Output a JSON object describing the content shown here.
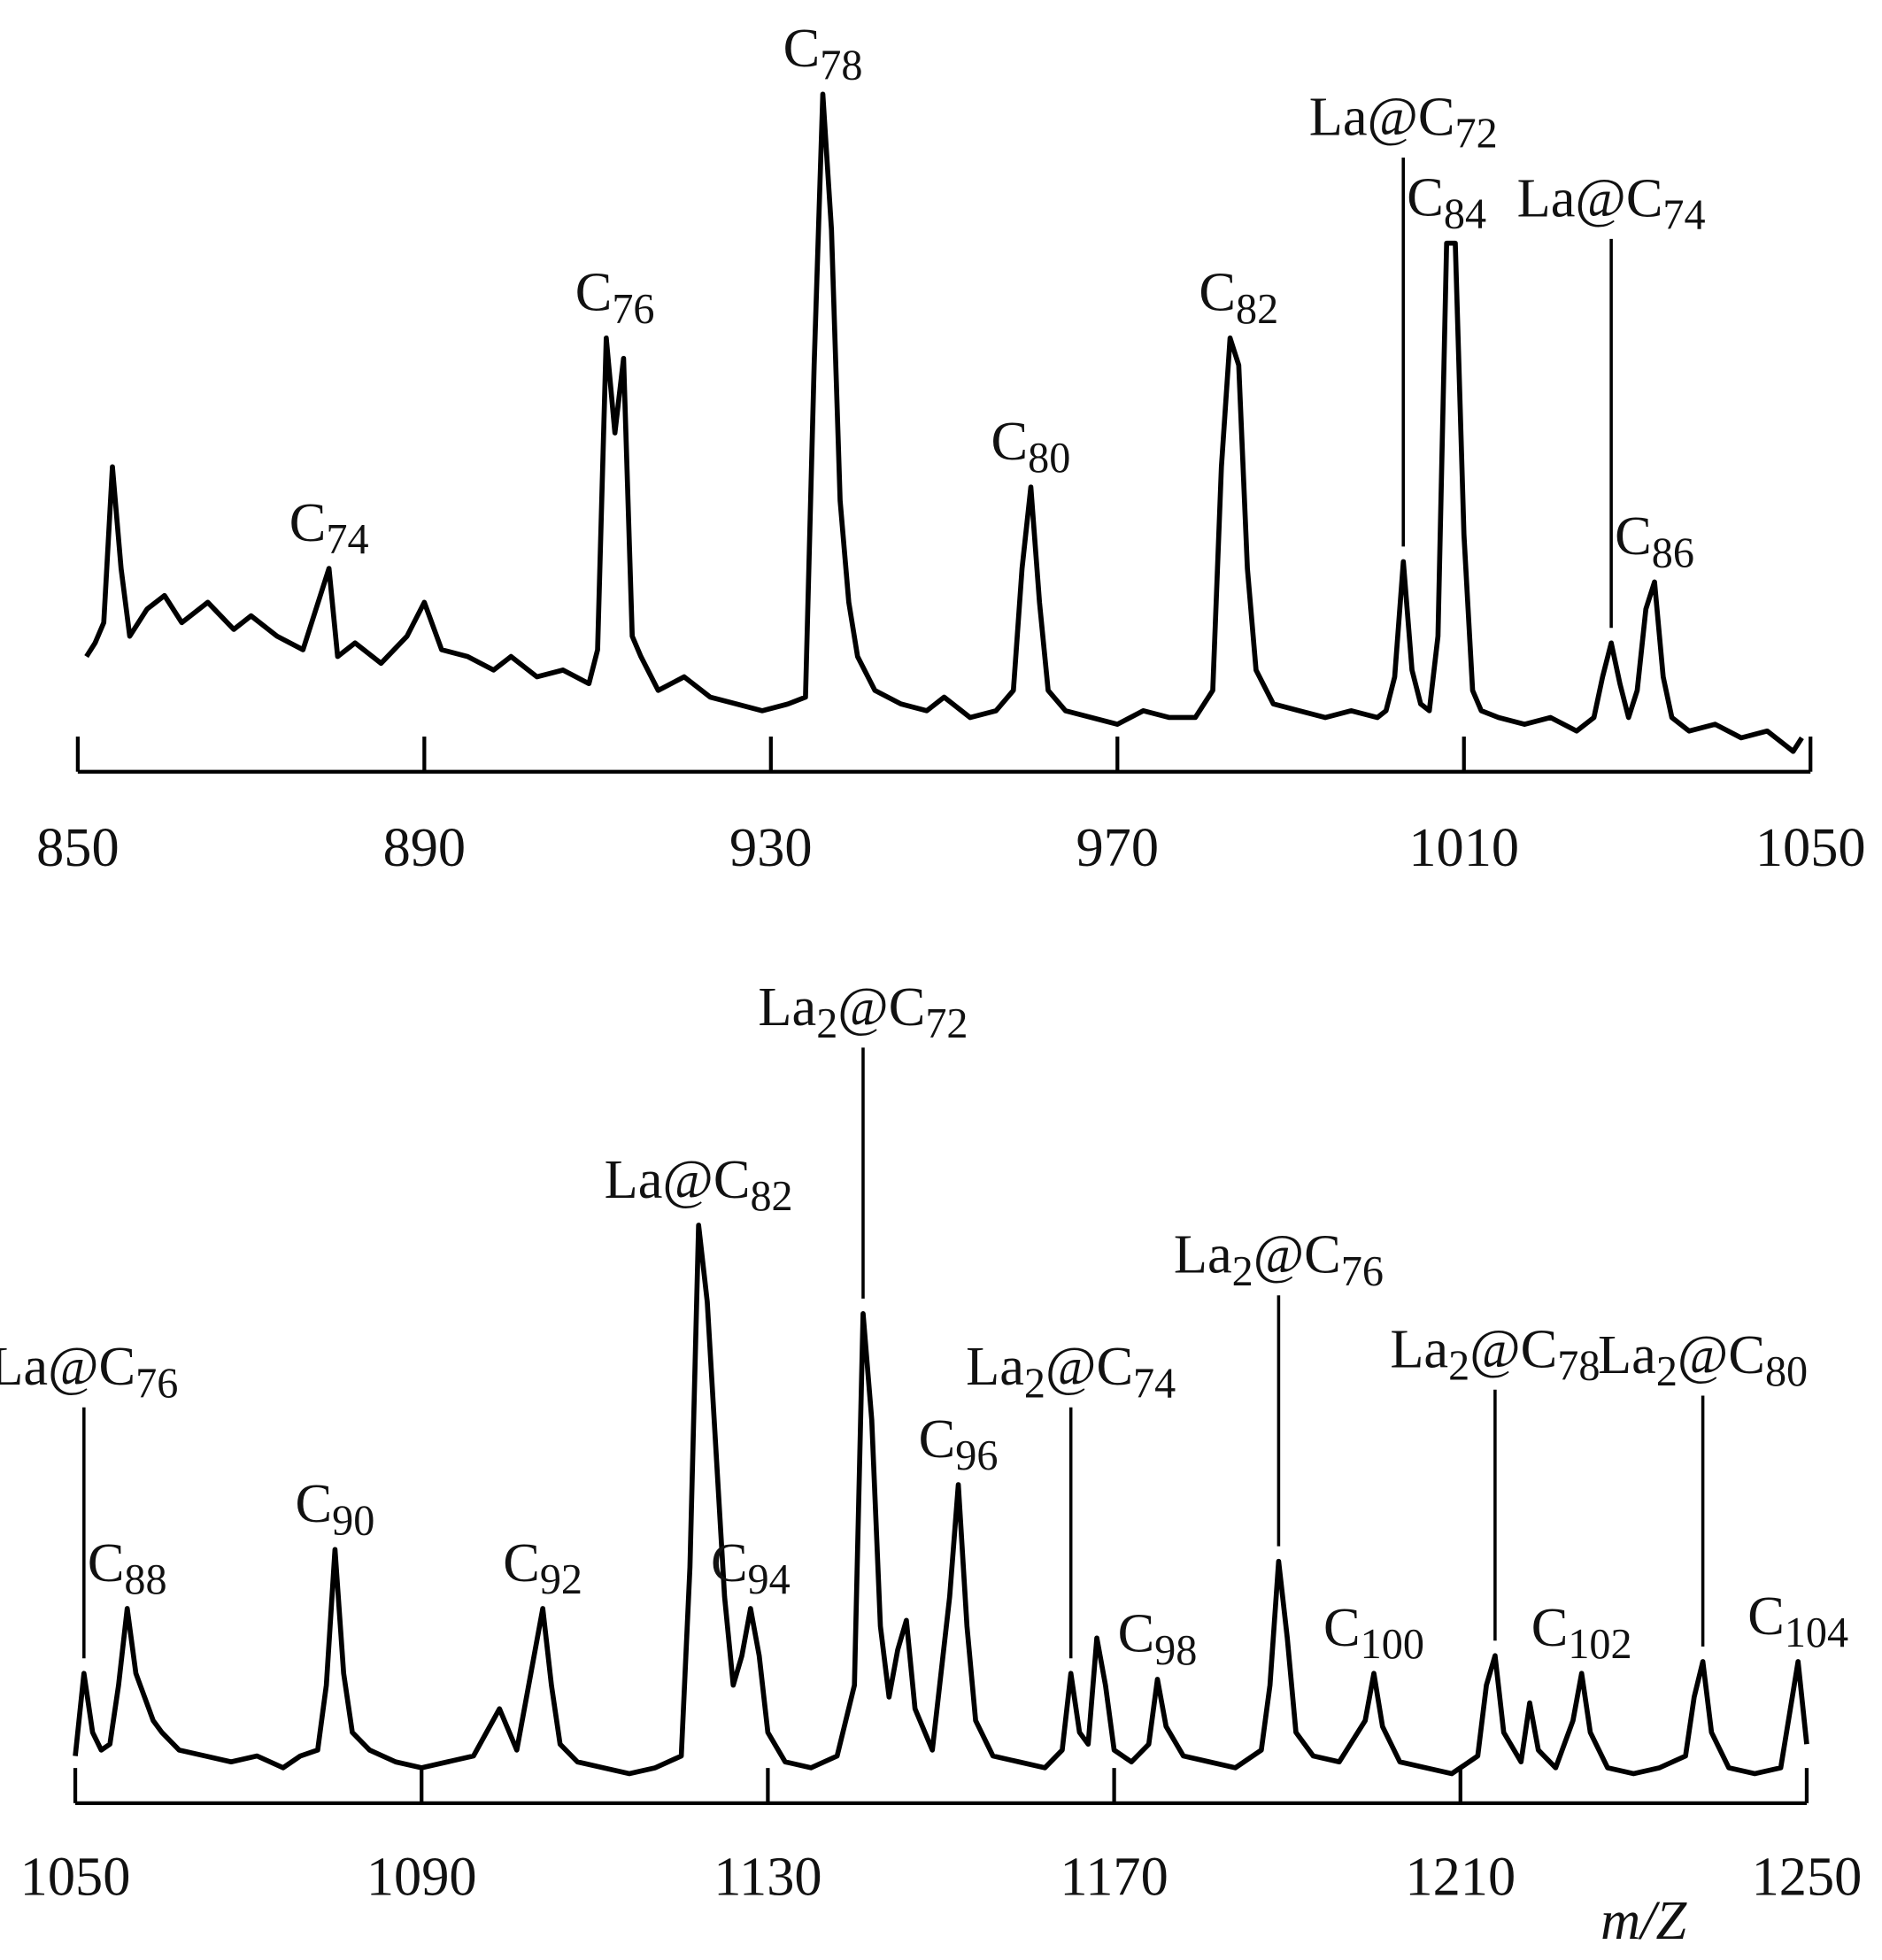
{
  "chart_data": [
    {
      "type": "line",
      "color": "#000000",
      "xlim": [
        850,
        1050
      ],
      "ylim": [
        0,
        100
      ],
      "xticks": [
        850,
        890,
        930,
        970,
        1010,
        1050
      ],
      "x": [
        851,
        852,
        853,
        854,
        855,
        856,
        858,
        860,
        862,
        865,
        868,
        870,
        873,
        876,
        879,
        880,
        882,
        885,
        888,
        890,
        892,
        895,
        898,
        900,
        903,
        906,
        909,
        910,
        911,
        912,
        913,
        914,
        915,
        917,
        920,
        923,
        926,
        929,
        932,
        934,
        935,
        936,
        937,
        938,
        939,
        940,
        942,
        945,
        948,
        950,
        953,
        956,
        958,
        959,
        960,
        961,
        962,
        964,
        967,
        970,
        973,
        976,
        979,
        981,
        982,
        983,
        984,
        985,
        986,
        988,
        991,
        994,
        997,
        1000,
        1001,
        1002,
        1003,
        1004,
        1005,
        1006,
        1007,
        1008,
        1009,
        1010,
        1011,
        1012,
        1014,
        1017,
        1020,
        1023,
        1025,
        1026,
        1027,
        1028,
        1029,
        1030,
        1031,
        1032,
        1033,
        1034,
        1036,
        1039,
        1042,
        1045,
        1048,
        1049
      ],
      "values": [
        17,
        19,
        22,
        45,
        30,
        20,
        24,
        26,
        22,
        25,
        21,
        23,
        20,
        18,
        30,
        17,
        19,
        16,
        20,
        25,
        18,
        17,
        15,
        17,
        14,
        15,
        13,
        18,
        64,
        50,
        61,
        20,
        17,
        12,
        14,
        11,
        10,
        9,
        10,
        11,
        60,
        100,
        80,
        40,
        25,
        17,
        12,
        10,
        9,
        11,
        8,
        9,
        12,
        30,
        42,
        25,
        12,
        9,
        8,
        7,
        9,
        8,
        8,
        12,
        45,
        64,
        60,
        30,
        15,
        10,
        9,
        8,
        9,
        8,
        9,
        14,
        31,
        15,
        10,
        9,
        20,
        78,
        78,
        35,
        12,
        9,
        8,
        7,
        8,
        6,
        8,
        14,
        19,
        13,
        8,
        12,
        24,
        28,
        14,
        8,
        6,
        7,
        5,
        6,
        3,
        5
      ],
      "annotations": [
        {
          "text": [
            {
              "t": "C"
            },
            {
              "t": "74",
              "sub": true
            }
          ],
          "x": 879
        },
        {
          "text": [
            {
              "t": "C"
            },
            {
              "t": "76",
              "sub": true
            }
          ],
          "x": 912
        },
        {
          "text": [
            {
              "t": "C"
            },
            {
              "t": "78",
              "sub": true
            }
          ],
          "x": 936
        },
        {
          "text": [
            {
              "t": "C"
            },
            {
              "t": "80",
              "sub": true
            }
          ],
          "x": 960
        },
        {
          "text": [
            {
              "t": "C"
            },
            {
              "t": "82",
              "sub": true
            }
          ],
          "x": 984
        },
        {
          "text": [
            {
              "t": "La@C"
            },
            {
              "t": "72",
              "sub": true
            }
          ],
          "x": 1003,
          "leader": true
        },
        {
          "text": [
            {
              "t": "C"
            },
            {
              "t": "84",
              "sub": true
            }
          ],
          "x": 1008
        },
        {
          "text": [
            {
              "t": "La@C"
            },
            {
              "t": "74",
              "sub": true
            }
          ],
          "x": 1027,
          "leader": true
        },
        {
          "text": [
            {
              "t": "C"
            },
            {
              "t": "86",
              "sub": true
            }
          ],
          "x": 1032
        }
      ]
    },
    {
      "type": "line",
      "color": "#000000",
      "xlim": [
        1050,
        1250
      ],
      "ylim": [
        0,
        100
      ],
      "xticks": [
        1050,
        1090,
        1130,
        1170,
        1210,
        1250
      ],
      "x_label": "m/Z",
      "x": [
        1050,
        1051,
        1052,
        1053,
        1054,
        1055,
        1056,
        1057,
        1058,
        1059,
        1060,
        1062,
        1065,
        1068,
        1071,
        1074,
        1076,
        1078,
        1079,
        1080,
        1081,
        1082,
        1084,
        1087,
        1090,
        1093,
        1096,
        1099,
        1101,
        1103,
        1104,
        1105,
        1106,
        1108,
        1111,
        1114,
        1117,
        1120,
        1121,
        1122,
        1123,
        1124,
        1125,
        1126,
        1127,
        1128,
        1129,
        1130,
        1132,
        1135,
        1138,
        1140,
        1141,
        1142,
        1143,
        1144,
        1145,
        1146,
        1147,
        1149,
        1151,
        1152,
        1153,
        1154,
        1156,
        1159,
        1162,
        1164,
        1165,
        1166,
        1167,
        1168,
        1169,
        1170,
        1172,
        1174,
        1175,
        1176,
        1178,
        1181,
        1184,
        1187,
        1188,
        1189,
        1190,
        1191,
        1193,
        1196,
        1199,
        1200,
        1201,
        1203,
        1206,
        1209,
        1212,
        1213,
        1214,
        1215,
        1217,
        1218,
        1219,
        1221,
        1223,
        1224,
        1225,
        1227,
        1230,
        1233,
        1236,
        1237,
        1238,
        1239,
        1241,
        1244,
        1247,
        1248,
        1249,
        1250
      ],
      "values": [
        8,
        22,
        12,
        9,
        10,
        20,
        33,
        22,
        18,
        14,
        12,
        9,
        8,
        7,
        8,
        6,
        8,
        9,
        20,
        43,
        22,
        12,
        9,
        7,
        6,
        7,
        8,
        16,
        9,
        25,
        33,
        20,
        10,
        7,
        6,
        5,
        6,
        8,
        40,
        98,
        85,
        60,
        35,
        20,
        25,
        33,
        25,
        12,
        7,
        6,
        8,
        20,
        83,
        65,
        30,
        18,
        26,
        31,
        16,
        9,
        35,
        54,
        30,
        14,
        8,
        7,
        6,
        9,
        22,
        12,
        10,
        28,
        20,
        9,
        7,
        10,
        21,
        13,
        8,
        7,
        6,
        9,
        20,
        41,
        28,
        12,
        8,
        7,
        14,
        22,
        13,
        7,
        6,
        5,
        8,
        20,
        25,
        12,
        7,
        17,
        9,
        6,
        14,
        22,
        12,
        6,
        5,
        6,
        8,
        18,
        24,
        12,
        6,
        5,
        6,
        15,
        24,
        10
      ],
      "annotations": [
        {
          "text": [
            {
              "t": "La@C"
            },
            {
              "t": "76",
              "sub": true
            }
          ],
          "x": 1051,
          "leader": true
        },
        {
          "text": [
            {
              "t": "C"
            },
            {
              "t": "88",
              "sub": true
            }
          ],
          "x": 1056
        },
        {
          "text": [
            {
              "t": "C"
            },
            {
              "t": "90",
              "sub": true
            }
          ],
          "x": 1080
        },
        {
          "text": [
            {
              "t": "C"
            },
            {
              "t": "92",
              "sub": true
            }
          ],
          "x": 1104
        },
        {
          "text": [
            {
              "t": "La@C"
            },
            {
              "t": "82",
              "sub": true
            }
          ],
          "x": 1122
        },
        {
          "text": [
            {
              "t": "C"
            },
            {
              "t": "94",
              "sub": true
            }
          ],
          "x": 1128
        },
        {
          "text": [
            {
              "t": "La"
            },
            {
              "t": "2",
              "sub": true
            },
            {
              "t": "@C"
            },
            {
              "t": "72",
              "sub": true
            }
          ],
          "x": 1141,
          "leader": true
        },
        {
          "text": [
            {
              "t": "C"
            },
            {
              "t": "96",
              "sub": true
            }
          ],
          "x": 1152
        },
        {
          "text": [
            {
              "t": "La"
            },
            {
              "t": "2",
              "sub": true
            },
            {
              "t": "@C"
            },
            {
              "t": "74",
              "sub": true
            }
          ],
          "x": 1165,
          "leader": true
        },
        {
          "text": [
            {
              "t": "C"
            },
            {
              "t": "98",
              "sub": true
            }
          ],
          "x": 1175
        },
        {
          "text": [
            {
              "t": "La"
            },
            {
              "t": "2",
              "sub": true
            },
            {
              "t": "@C"
            },
            {
              "t": "76",
              "sub": true
            }
          ],
          "x": 1189,
          "leader": true
        },
        {
          "text": [
            {
              "t": "C"
            },
            {
              "t": "100",
              "sub": true
            }
          ],
          "x": 1200
        },
        {
          "text": [
            {
              "t": "La"
            },
            {
              "t": "2",
              "sub": true
            },
            {
              "t": "@C"
            },
            {
              "t": "78",
              "sub": true
            }
          ],
          "x": 1214,
          "leader": true
        },
        {
          "text": [
            {
              "t": "C"
            },
            {
              "t": "102",
              "sub": true
            }
          ],
          "x": 1224
        },
        {
          "text": [
            {
              "t": "La"
            },
            {
              "t": "2",
              "sub": true
            },
            {
              "t": "@C"
            },
            {
              "t": "80",
              "sub": true
            }
          ],
          "x": 1238,
          "leader": true
        },
        {
          "text": [
            {
              "t": "C"
            },
            {
              "t": "104",
              "sub": true
            }
          ],
          "x": 1249
        }
      ]
    }
  ]
}
